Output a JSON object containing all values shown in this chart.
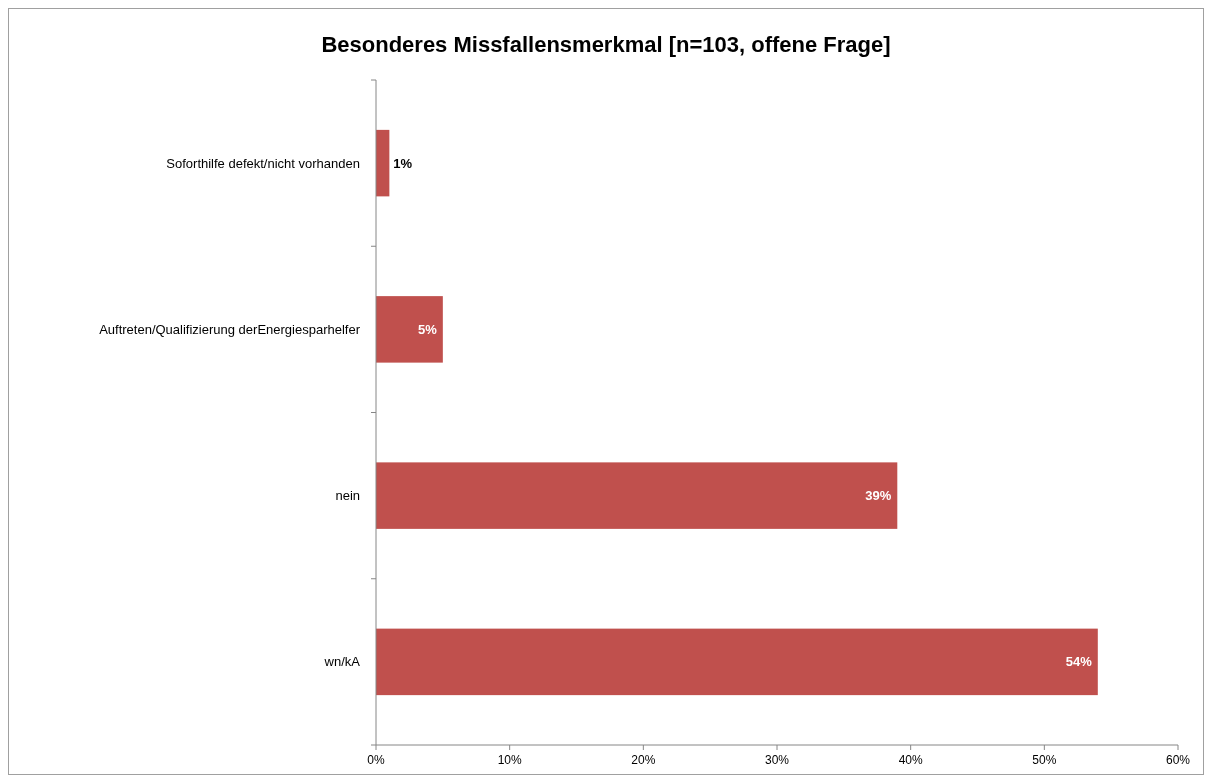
{
  "chart_data": {
    "type": "bar",
    "orientation": "horizontal",
    "title": "Besonderes Missfallensmerkmal [n=103, offene Frage]",
    "categories": [
      "Soforthilfe defekt/nicht vorhanden",
      "Auftreten/Qualifizierung derEnergiesparhelfer",
      "nein",
      "wn/kA"
    ],
    "values": [
      1,
      5,
      39,
      54
    ],
    "color": "#c0504d",
    "value_labels": [
      "1%",
      "5%",
      "39%",
      "54%"
    ],
    "xlim": [
      0,
      60
    ],
    "xticks": [
      {
        "value": 0,
        "label": "0%"
      },
      {
        "value": 10,
        "label": "10%"
      },
      {
        "value": 20,
        "label": "20%"
      },
      {
        "value": 30,
        "label": "30%"
      },
      {
        "value": 40,
        "label": "40%"
      },
      {
        "value": 50,
        "label": "50%"
      },
      {
        "value": 60,
        "label": "60%"
      }
    ],
    "grid": false
  }
}
